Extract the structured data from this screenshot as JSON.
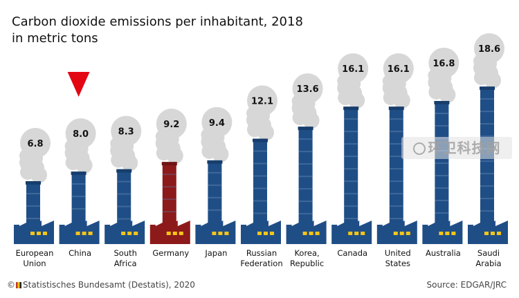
{
  "title_line1": "Carbon dioxide emissions per inhabitant, 2018",
  "title_line2": "in metric tons",
  "footer_left_symbol": "©",
  "footer_left_text": "Statistisches Bundesamt (Destatis), 2020",
  "footer_right": "Source: EDGAR/JRC",
  "watermark_text": "环卫科技网",
  "colors": {
    "chimney": "#1f4e86",
    "chimney_dark": "#173e6c",
    "highlight": "#8c1a1a",
    "highlight_dark": "#6e1313",
    "smoke": "#d7d7d7",
    "window": "#f5c518",
    "marker": "#e30613"
  },
  "chart_data": {
    "type": "bar",
    "title": "Carbon dioxide emissions per inhabitant, 2018 in metric tons",
    "categories": [
      "European Union",
      "China",
      "South Africa",
      "Germany",
      "Japan",
      "Russian Federation",
      "Korea, Republic",
      "Canada",
      "United States",
      "Australia",
      "Saudi Arabia"
    ],
    "category_lines": [
      [
        "European",
        "Union"
      ],
      [
        "China"
      ],
      [
        "South",
        "Africa"
      ],
      [
        "Germany"
      ],
      [
        "Japan"
      ],
      [
        "Russian",
        "Federation"
      ],
      [
        "Korea,",
        "Republic"
      ],
      [
        "Canada"
      ],
      [
        "United",
        "States"
      ],
      [
        "Australia"
      ],
      [
        "Saudi",
        "Arabia"
      ]
    ],
    "values": [
      6.8,
      8.0,
      8.3,
      9.2,
      9.4,
      12.1,
      13.6,
      16.1,
      16.1,
      16.8,
      18.6
    ],
    "value_labels": [
      "6.8",
      "8.0",
      "8.3",
      "9.2",
      "9.4",
      "12.1",
      "13.6",
      "16.1",
      "16.1",
      "16.8",
      "18.6"
    ],
    "highlighted_category": "Germany",
    "marked_category": "China"
  }
}
